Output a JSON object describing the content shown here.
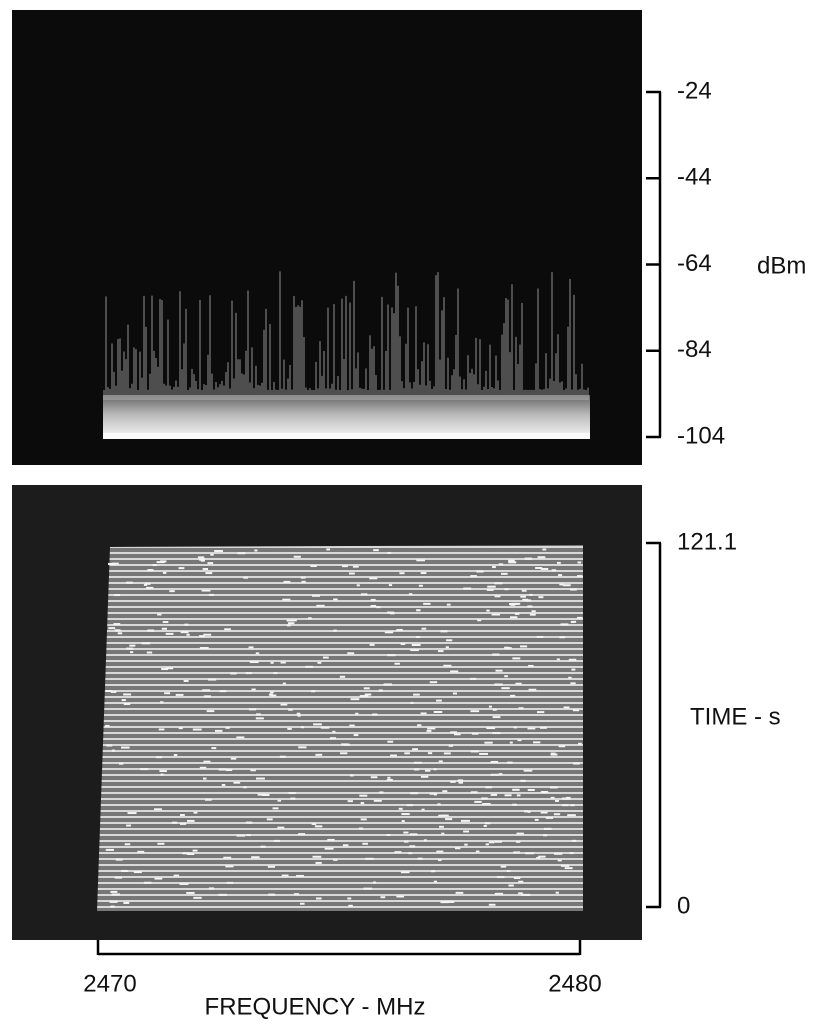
{
  "chart_data": [
    {
      "type": "spectrum",
      "ylabel": "dBm",
      "ylim": [
        -104,
        -24
      ],
      "yticks": [
        -24,
        -44,
        -64,
        -84,
        -104
      ]
    },
    {
      "type": "waterfall",
      "ylabel": "TIME - s",
      "ylim": [
        0,
        121.1
      ],
      "yticks": [
        121.1,
        0
      ],
      "xlabel": "FREQUENCY - MHz",
      "xlim": [
        2470,
        2480
      ],
      "xticks": [
        2470,
        2480
      ]
    }
  ]
}
